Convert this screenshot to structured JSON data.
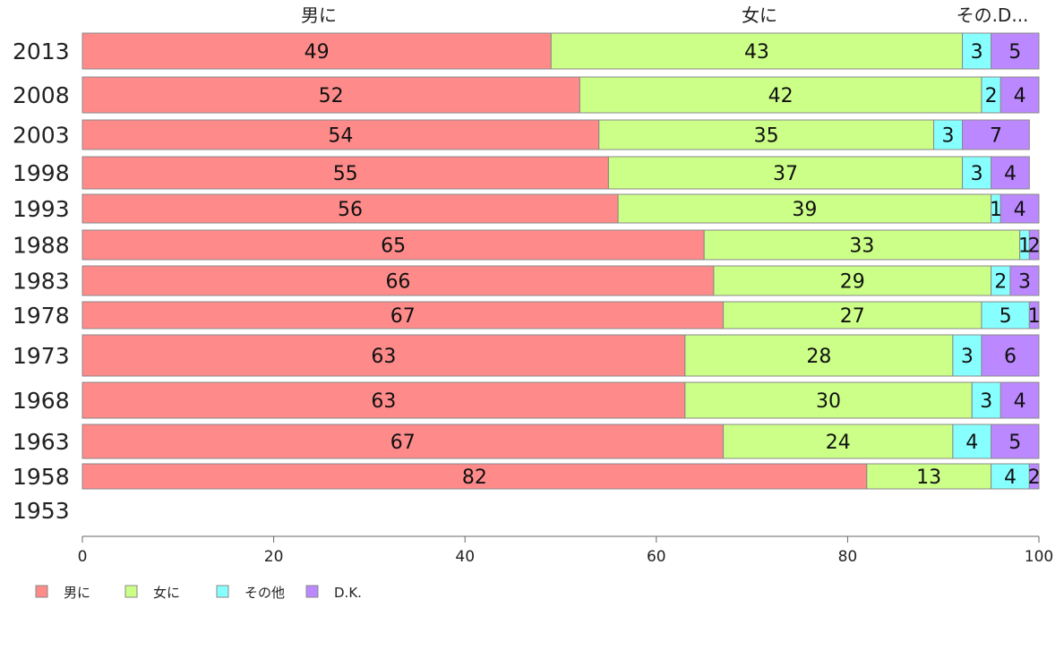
{
  "chart_data": {
    "type": "bar",
    "orientation": "horizontal",
    "stacked": true,
    "categories": [
      "2013",
      "2008",
      "2003",
      "1998",
      "1993",
      "1988",
      "1983",
      "1978",
      "1973",
      "1968",
      "1963",
      "1958",
      "1953"
    ],
    "series": [
      {
        "name": "男に",
        "color": "#ff8a8a",
        "values": [
          49,
          52,
          54,
          55,
          56,
          65,
          66,
          67,
          63,
          63,
          67,
          82,
          null
        ]
      },
      {
        "name": "女に",
        "color": "#ccff88",
        "values": [
          43,
          42,
          35,
          37,
          39,
          33,
          29,
          27,
          28,
          30,
          24,
          13,
          null
        ]
      },
      {
        "name": "その他",
        "color": "#88ffff",
        "values": [
          3,
          2,
          3,
          3,
          1,
          1,
          2,
          5,
          3,
          3,
          4,
          4,
          null
        ]
      },
      {
        "name": "D.K.",
        "color": "#bb88ff",
        "values": [
          5,
          4,
          7,
          4,
          4,
          2,
          3,
          1,
          6,
          4,
          5,
          2,
          null
        ]
      }
    ],
    "top_labels": [
      "男に",
      "女に",
      "その.D..."
    ],
    "xlim": [
      0,
      100
    ],
    "xticks": [
      0,
      20,
      40,
      60,
      80,
      100
    ],
    "legend": "bottom-left"
  }
}
